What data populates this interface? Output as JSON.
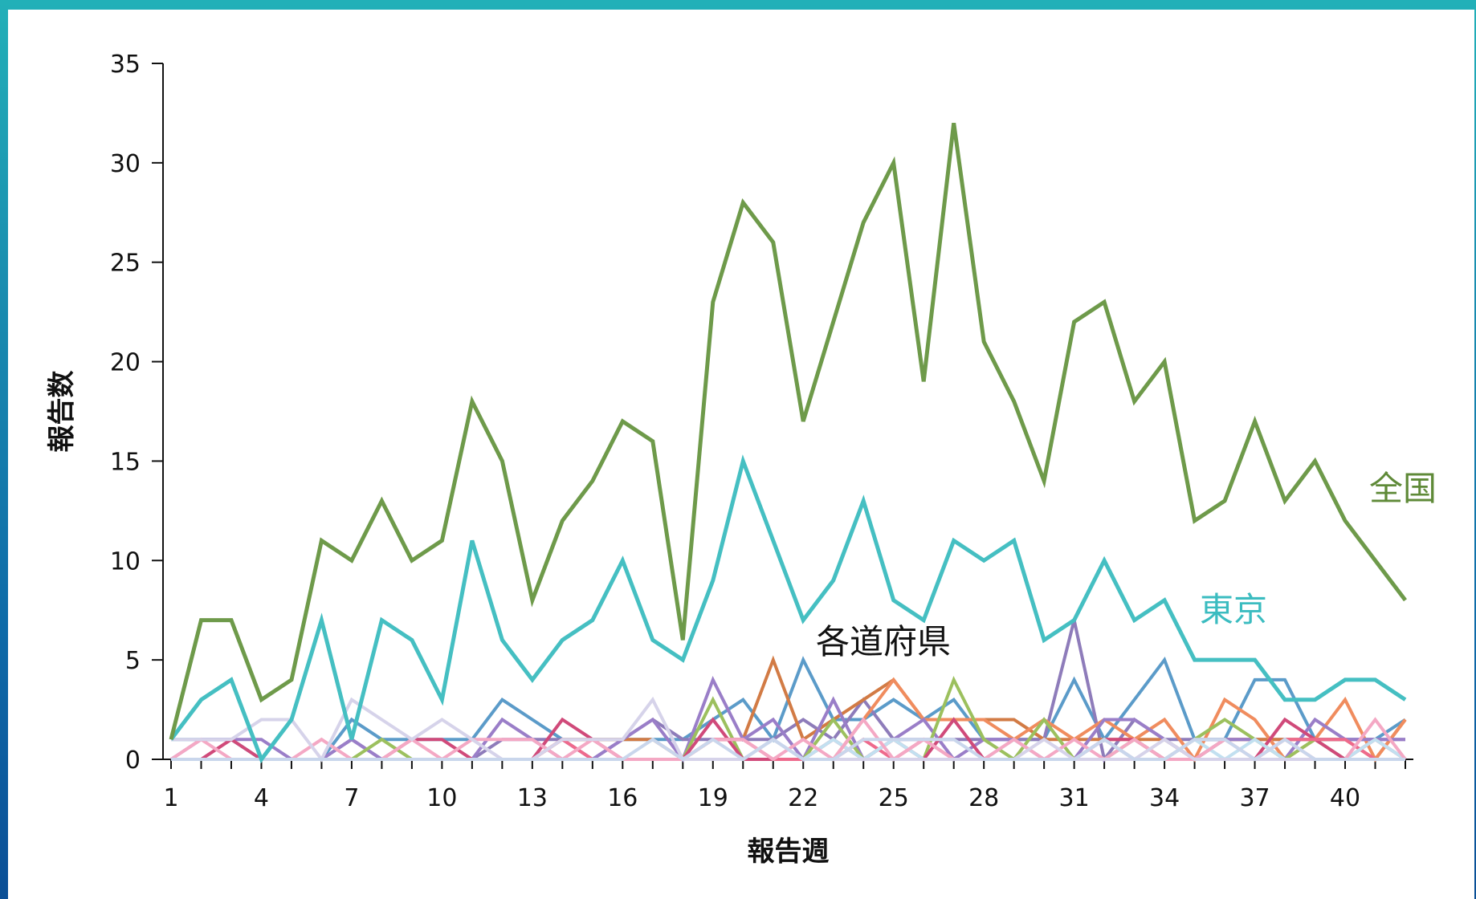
{
  "chart_data": {
    "type": "line",
    "xlabel": "報告週",
    "ylabel": "報告数",
    "ylim": [
      0,
      35
    ],
    "yticks": [
      0,
      5,
      10,
      15,
      20,
      25,
      30,
      35
    ],
    "xlim": [
      1,
      42
    ],
    "xticks": [
      1,
      4,
      7,
      10,
      13,
      16,
      19,
      22,
      25,
      28,
      31,
      34,
      37,
      40
    ],
    "x": [
      1,
      2,
      3,
      4,
      5,
      6,
      7,
      8,
      9,
      10,
      11,
      12,
      13,
      14,
      15,
      16,
      17,
      18,
      19,
      20,
      21,
      22,
      23,
      24,
      25,
      26,
      27,
      28,
      29,
      30,
      31,
      32,
      33,
      34,
      35,
      36,
      37,
      38,
      39,
      40,
      41,
      42
    ],
    "grid": false,
    "legend": "none",
    "annotations": [
      {
        "text": "全国",
        "color": "#5f8a38",
        "series": "全国"
      },
      {
        "text": "東京",
        "color": "#3bbcc0",
        "series": "東京"
      },
      {
        "text": "各道府県",
        "color": "#111111",
        "series": "prefectures"
      }
    ],
    "series": [
      {
        "name": "全国",
        "color": "#6e9a4a",
        "width": 5,
        "values": [
          1,
          7,
          7,
          3,
          4,
          11,
          10,
          13,
          10,
          11,
          18,
          15,
          8,
          12,
          14,
          17,
          16,
          6,
          23,
          28,
          26,
          17,
          22,
          27,
          30,
          19,
          32,
          21,
          18,
          14,
          22,
          23,
          18,
          20,
          12,
          13,
          17,
          13,
          15,
          12,
          10,
          8
        ]
      },
      {
        "name": "東京",
        "color": "#45bfc2",
        "width": 5,
        "values": [
          1,
          3,
          4,
          0,
          2,
          7,
          1,
          7,
          6,
          3,
          11,
          6,
          4,
          6,
          7,
          10,
          6,
          5,
          9,
          15,
          11,
          7,
          9,
          13,
          8,
          7,
          11,
          10,
          11,
          6,
          7,
          10,
          7,
          8,
          5,
          5,
          5,
          3,
          3,
          4,
          4,
          3
        ]
      },
      {
        "color": "#5b9bc9",
        "width": 4,
        "values": [
          1,
          1,
          1,
          0,
          0,
          0,
          2,
          1,
          1,
          1,
          1,
          3,
          2,
          1,
          1,
          1,
          1,
          1,
          2,
          3,
          1,
          5,
          2,
          2,
          3,
          2,
          3,
          1,
          1,
          1,
          4,
          1,
          3,
          5,
          1,
          1,
          4,
          4,
          1,
          1,
          1,
          2
        ]
      },
      {
        "color": "#8e7cba",
        "width": 4,
        "values": [
          0,
          0,
          0,
          0,
          0,
          0,
          1,
          0,
          0,
          0,
          0,
          1,
          1,
          1,
          0,
          1,
          2,
          1,
          1,
          1,
          1,
          2,
          1,
          3,
          1,
          1,
          1,
          1,
          1,
          1,
          7,
          0,
          2,
          1,
          1,
          1,
          1,
          1,
          1,
          1,
          1,
          1
        ]
      },
      {
        "color": "#d27b45",
        "width": 4,
        "values": [
          0,
          0,
          0,
          0,
          0,
          0,
          0,
          0,
          0,
          0,
          0,
          0,
          0,
          1,
          1,
          1,
          1,
          0,
          1,
          1,
          5,
          1,
          2,
          3,
          4,
          2,
          2,
          2,
          2,
          1,
          1,
          1,
          1,
          1,
          0,
          1,
          1,
          1,
          1,
          1,
          0,
          2
        ]
      },
      {
        "color": "#f08c5e",
        "width": 4,
        "values": [
          0,
          0,
          0,
          0,
          0,
          0,
          0,
          0,
          0,
          0,
          0,
          0,
          0,
          0,
          0,
          0,
          0,
          0,
          0,
          0,
          0,
          0,
          0,
          2,
          4,
          2,
          2,
          2,
          1,
          2,
          1,
          2,
          1,
          2,
          0,
          3,
          2,
          0,
          1,
          3,
          0,
          2
        ]
      },
      {
        "color": "#9a7ec8",
        "width": 4,
        "values": [
          0,
          1,
          1,
          1,
          0,
          0,
          1,
          0,
          0,
          0,
          0,
          2,
          1,
          0,
          0,
          1,
          2,
          0,
          4,
          1,
          2,
          0,
          3,
          0,
          1,
          2,
          0,
          1,
          1,
          0,
          0,
          2,
          2,
          1,
          0,
          1,
          1,
          0,
          2,
          1,
          1,
          1
        ]
      },
      {
        "color": "#9cc05e",
        "width": 4,
        "values": [
          0,
          0,
          0,
          0,
          0,
          0,
          0,
          1,
          0,
          0,
          0,
          0,
          0,
          0,
          0,
          0,
          0,
          0,
          3,
          0,
          0,
          0,
          2,
          0,
          0,
          0,
          4,
          1,
          0,
          2,
          0,
          0,
          1,
          0,
          1,
          2,
          1,
          0,
          1,
          0,
          0,
          0
        ]
      },
      {
        "color": "#d04a7a",
        "width": 4,
        "values": [
          0,
          0,
          1,
          0,
          0,
          0,
          0,
          0,
          1,
          1,
          0,
          0,
          0,
          2,
          1,
          0,
          0,
          0,
          2,
          0,
          0,
          0,
          1,
          0,
          1,
          0,
          2,
          0,
          0,
          0,
          0,
          1,
          1,
          0,
          0,
          0,
          0,
          2,
          1,
          0,
          1,
          0
        ]
      },
      {
        "color": "#ee6a8c",
        "width": 4,
        "values": [
          0,
          0,
          0,
          0,
          0,
          0,
          0,
          0,
          0,
          0,
          0,
          0,
          0,
          1,
          0,
          0,
          0,
          0,
          1,
          1,
          0,
          0,
          0,
          1,
          0,
          1,
          0,
          0,
          0,
          0,
          0,
          1,
          0,
          0,
          0,
          0,
          0,
          1,
          1,
          1,
          0,
          0
        ]
      },
      {
        "color": "#c2e0f0",
        "width": 4,
        "values": [
          0,
          0,
          0,
          0,
          0,
          0,
          0,
          0,
          0,
          0,
          0,
          0,
          0,
          0,
          0,
          0,
          0,
          0,
          0,
          0,
          1,
          0,
          1,
          0,
          1,
          0,
          0,
          0,
          1,
          0,
          0,
          1,
          0,
          0,
          1,
          0,
          1,
          0,
          0,
          0,
          1,
          0
        ]
      },
      {
        "color": "#f4a8c4",
        "width": 4,
        "values": [
          0,
          1,
          0,
          0,
          0,
          1,
          0,
          0,
          1,
          0,
          1,
          1,
          1,
          0,
          1,
          0,
          0,
          0,
          1,
          1,
          0,
          1,
          0,
          2,
          0,
          1,
          0,
          0,
          1,
          0,
          1,
          0,
          1,
          0,
          0,
          1,
          0,
          1,
          0,
          0,
          2,
          0
        ]
      },
      {
        "color": "#d6d3ea",
        "width": 4,
        "values": [
          1,
          1,
          1,
          2,
          2,
          0,
          3,
          2,
          1,
          2,
          1,
          0,
          0,
          1,
          1,
          1,
          3,
          0,
          0,
          0,
          1,
          0,
          0,
          0,
          0,
          0,
          0,
          0,
          0,
          1,
          0,
          0,
          0,
          1,
          0,
          0,
          0,
          0,
          0,
          0,
          0,
          0
        ]
      },
      {
        "color": "#c9d6ec",
        "width": 4,
        "values": [
          0,
          0,
          0,
          0,
          0,
          0,
          0,
          0,
          0,
          0,
          0,
          0,
          0,
          0,
          0,
          0,
          1,
          0,
          1,
          0,
          1,
          0,
          0,
          1,
          1,
          1,
          1,
          0,
          0,
          0,
          0,
          1,
          0,
          0,
          1,
          1,
          0,
          1,
          0,
          0,
          0,
          0
        ]
      }
    ]
  }
}
